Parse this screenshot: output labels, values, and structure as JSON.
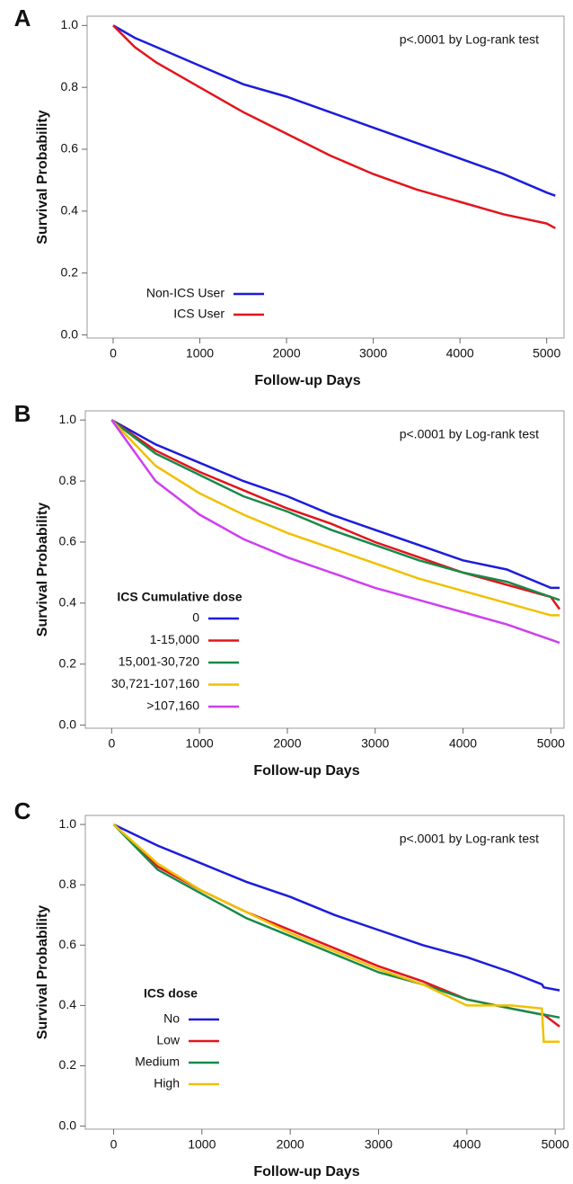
{
  "chart_data": [
    {
      "type": "line",
      "panel_label": "A",
      "annotation": "p<.0001 by Log-rank test",
      "xlabel": "Follow-up Days",
      "ylabel": "Survival Probability",
      "x": [
        0,
        250,
        500,
        1000,
        1500,
        2000,
        2500,
        3000,
        3500,
        4000,
        4500,
        5000,
        5100
      ],
      "series": [
        {
          "name": "Non-ICS User",
          "color": "#1c1cdc",
          "values": [
            1.0,
            0.96,
            0.93,
            0.87,
            0.81,
            0.77,
            0.72,
            0.67,
            0.62,
            0.57,
            0.52,
            0.46,
            0.45
          ]
        },
        {
          "name": "ICS User",
          "color": "#e3141c",
          "values": [
            1.0,
            0.93,
            0.88,
            0.8,
            0.72,
            0.65,
            0.58,
            0.52,
            0.47,
            0.43,
            0.39,
            0.36,
            0.345
          ]
        }
      ],
      "xlim": [
        -300,
        5200
      ],
      "ylim": [
        -0.01,
        1.03
      ],
      "xticks": [
        0,
        1000,
        2000,
        3000,
        4000,
        5000
      ],
      "yticks": [
        {
          "value": 0,
          "label": "0.0"
        },
        0.2,
        0.4,
        0.6,
        0.8,
        {
          "value": 1,
          "label": "1.0"
        }
      ]
    },
    {
      "type": "line",
      "panel_label": "B",
      "annotation": "p<.0001 by Log-rank test",
      "xlabel": "Follow-up Days",
      "ylabel": "Survival Probability",
      "legend_title": "ICS Cumulative dose",
      "x": [
        0,
        500,
        1000,
        1500,
        2000,
        2500,
        3000,
        3500,
        4000,
        4500,
        5000,
        5100
      ],
      "series": [
        {
          "name": "0",
          "color": "#1c1cdc",
          "values": [
            1.0,
            0.92,
            0.86,
            0.8,
            0.75,
            0.69,
            0.64,
            0.59,
            0.54,
            0.51,
            0.45,
            0.45
          ]
        },
        {
          "name": "1-15,000",
          "color": "#e3141c",
          "values": [
            1.0,
            0.9,
            0.83,
            0.77,
            0.71,
            0.66,
            0.6,
            0.55,
            0.5,
            0.46,
            0.42,
            0.38
          ]
        },
        {
          "name": "15,001-30,720",
          "color": "#178a4a",
          "values": [
            1.0,
            0.89,
            0.82,
            0.75,
            0.7,
            0.64,
            0.59,
            0.54,
            0.5,
            0.47,
            0.42,
            0.41
          ]
        },
        {
          "name": "30,721-107,160",
          "color": "#f0c000",
          "values": [
            1.0,
            0.85,
            0.76,
            0.69,
            0.63,
            0.58,
            0.53,
            0.48,
            0.44,
            0.4,
            0.36,
            0.36
          ]
        },
        {
          "name": ">107,160",
          "color": "#cf3ef0",
          "values": [
            1.0,
            0.8,
            0.69,
            0.61,
            0.55,
            0.5,
            0.45,
            0.41,
            0.37,
            0.33,
            0.28,
            0.27
          ]
        }
      ],
      "xlim": [
        -300,
        5150
      ],
      "ylim": [
        -0.01,
        1.03
      ],
      "xticks": [
        0,
        1000,
        2000,
        3000,
        4000,
        5000
      ],
      "yticks": [
        {
          "value": 0,
          "label": "0.0"
        },
        0.2,
        0.4,
        0.6,
        0.8,
        {
          "value": 1,
          "label": "1.0"
        }
      ]
    },
    {
      "type": "line",
      "panel_label": "C",
      "annotation": "p<.0001 by Log-rank test",
      "xlabel": "Follow-up Days",
      "ylabel": "Survival Probability",
      "legend_title": "ICS dose",
      "x": [
        0,
        500,
        1000,
        1500,
        2000,
        2500,
        3000,
        3500,
        4000,
        4500,
        4850,
        4870,
        5050
      ],
      "series": [
        {
          "name": "No",
          "color": "#1c1cdc",
          "values": [
            1.0,
            0.93,
            0.87,
            0.81,
            0.76,
            0.7,
            0.65,
            0.6,
            0.56,
            0.51,
            0.47,
            0.46,
            0.45
          ]
        },
        {
          "name": "Low",
          "color": "#e3141c",
          "values": [
            1.0,
            0.86,
            0.78,
            0.71,
            0.65,
            0.59,
            0.53,
            0.48,
            0.42,
            0.39,
            0.37,
            0.37,
            0.33
          ]
        },
        {
          "name": "Medium",
          "color": "#178a4a",
          "values": [
            1.0,
            0.85,
            0.77,
            0.69,
            0.63,
            0.57,
            0.51,
            0.47,
            0.42,
            0.39,
            0.37,
            0.37,
            0.36
          ]
        },
        {
          "name": "High",
          "color": "#f0c000",
          "values": [
            1.0,
            0.87,
            0.78,
            0.71,
            0.64,
            0.58,
            0.52,
            0.47,
            0.4,
            0.4,
            0.39,
            0.28,
            0.28
          ]
        }
      ],
      "xlim": [
        -320,
        5100
      ],
      "ylim": [
        -0.01,
        1.03
      ],
      "xticks": [
        0,
        1000,
        2000,
        3000,
        4000,
        5000
      ],
      "yticks": [
        {
          "value": 0,
          "label": "0.0"
        },
        0.2,
        0.4,
        0.6,
        0.8,
        {
          "value": 1,
          "label": "1.0"
        }
      ]
    }
  ]
}
